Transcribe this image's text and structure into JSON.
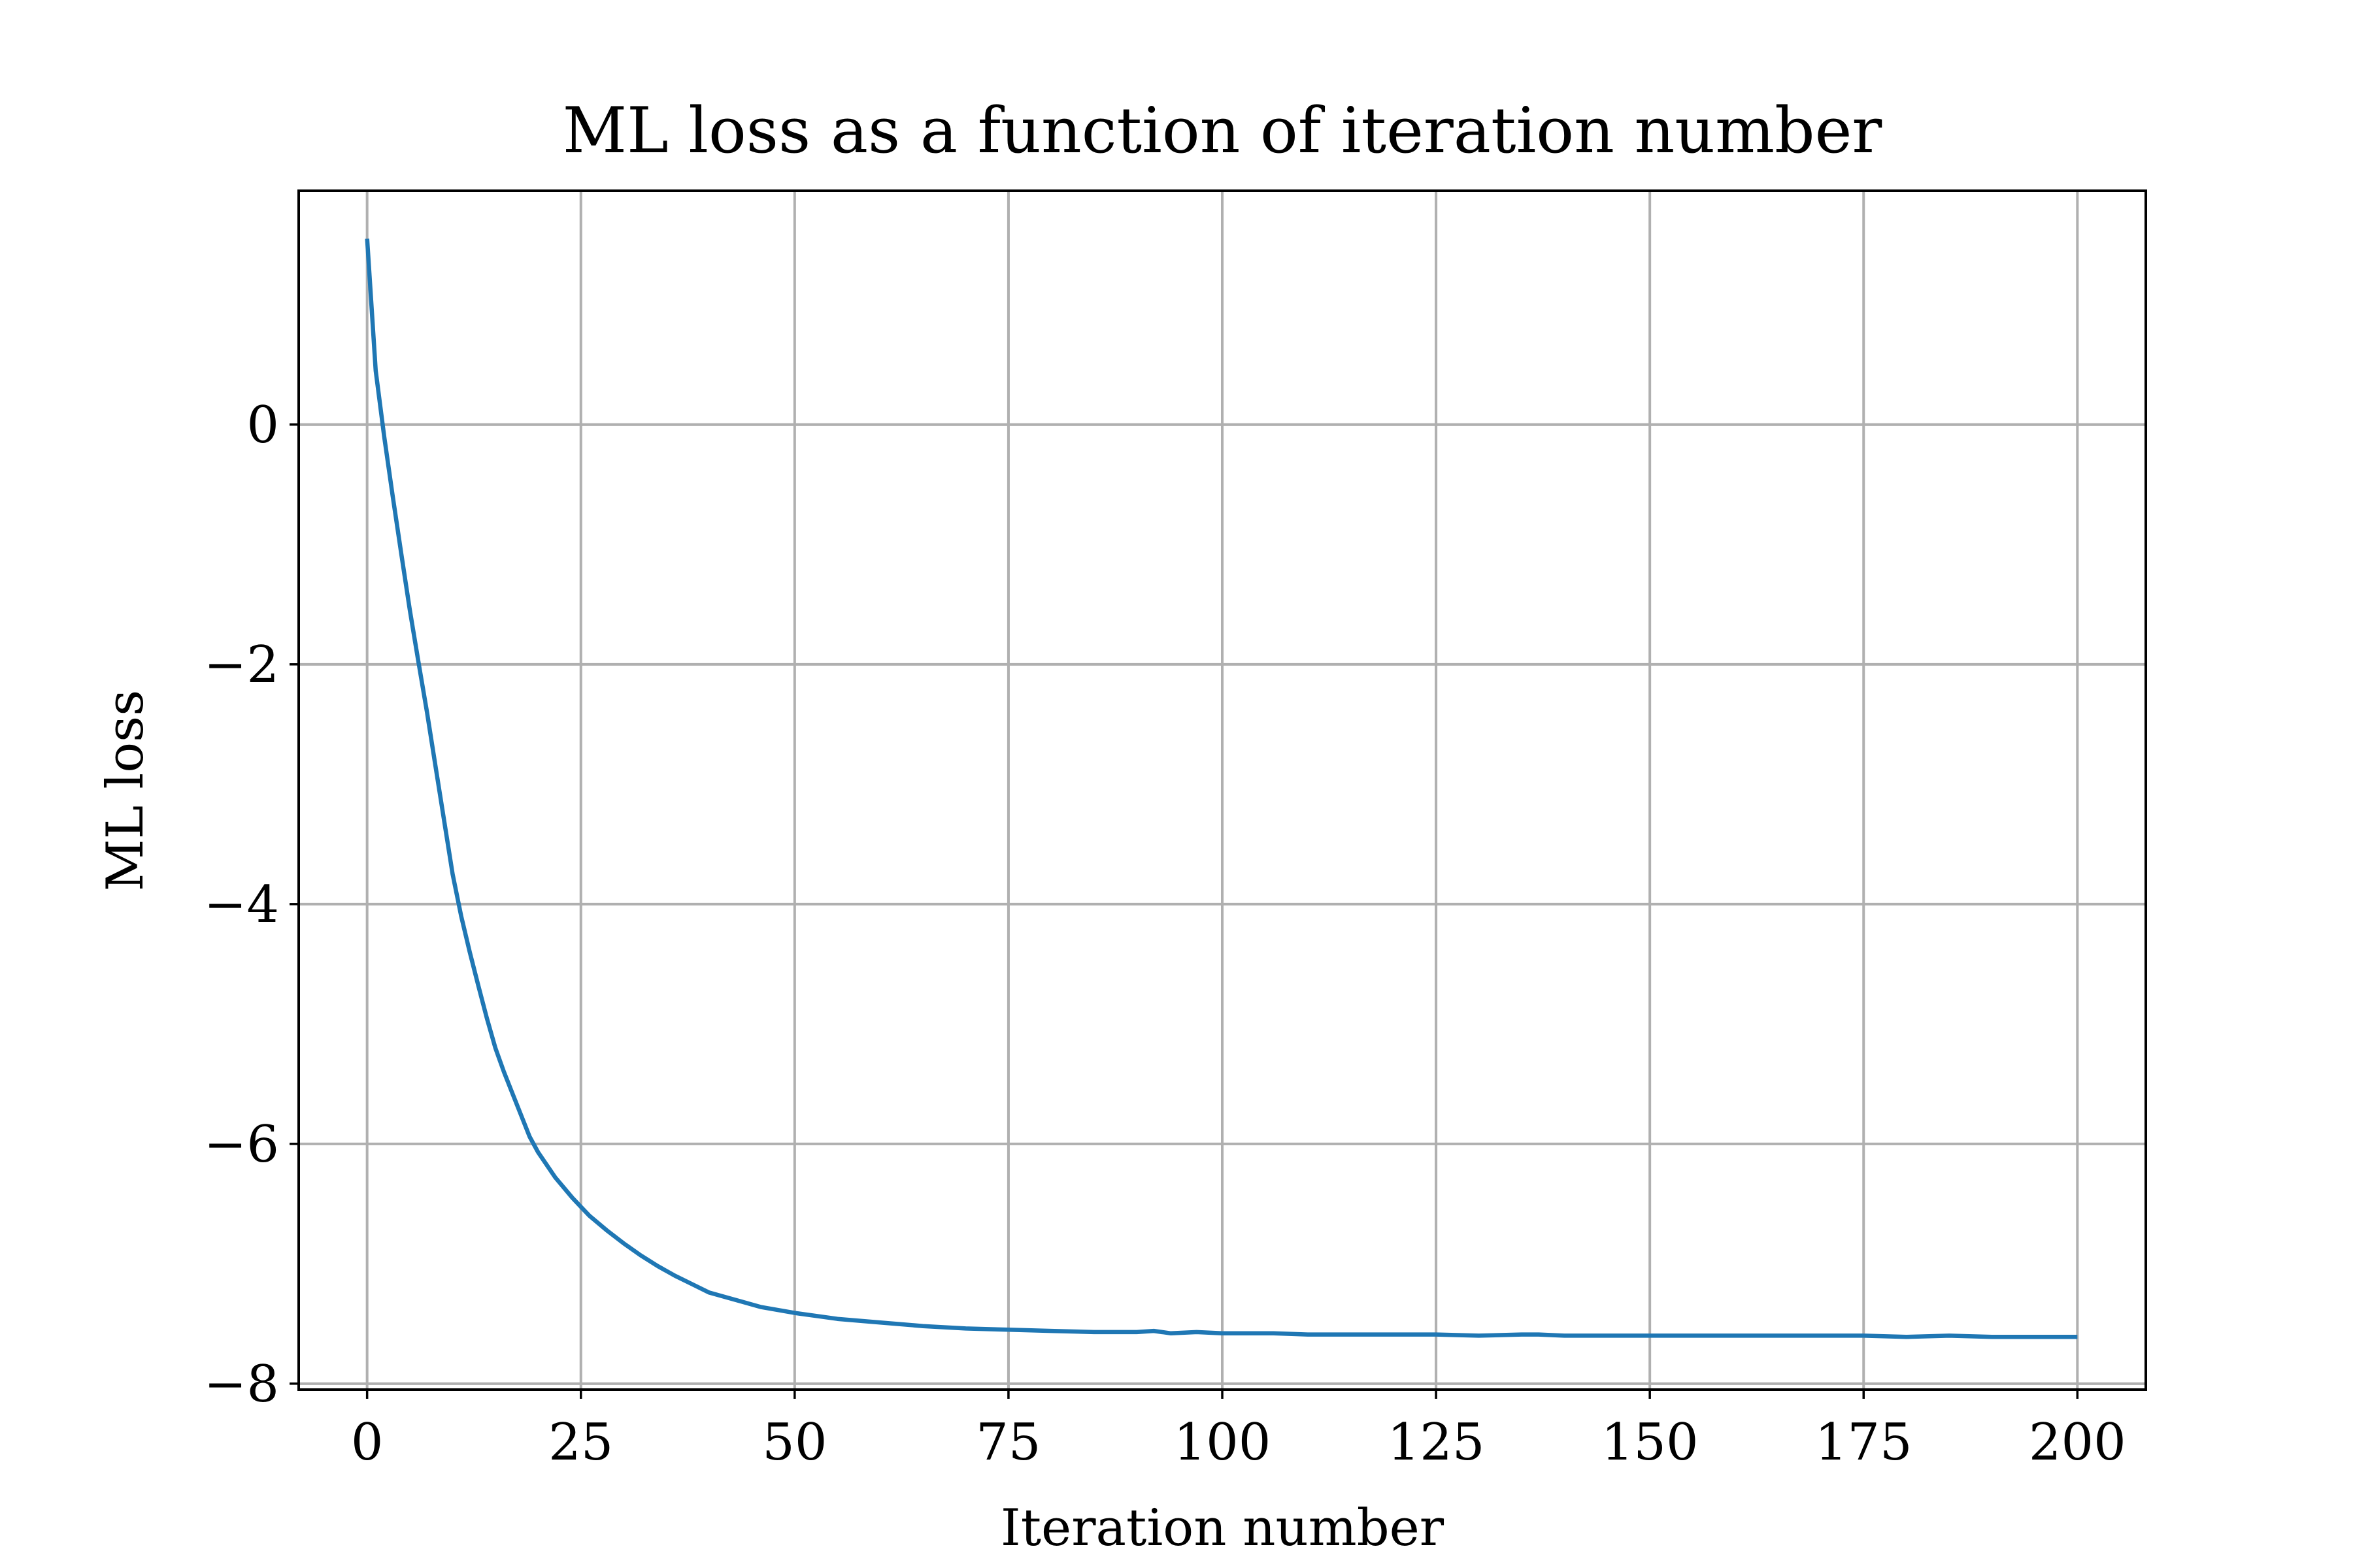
{
  "chart_data": {
    "type": "line",
    "title": "ML loss as a function of iteration number",
    "xlabel": "Iteration number",
    "ylabel": "ML loss",
    "xlim": [
      -8,
      208
    ],
    "ylim": [
      -8.05,
      1.95
    ],
    "xticks": [
      0,
      25,
      50,
      75,
      100,
      125,
      150,
      175,
      200
    ],
    "yticks": [
      0,
      -2,
      -4,
      -6,
      -8
    ],
    "xtick_labels": [
      "0",
      "25",
      "50",
      "75",
      "100",
      "125",
      "150",
      "175",
      "200"
    ],
    "ytick_labels": [
      "0",
      "−2",
      "−4",
      "−6",
      "−8"
    ],
    "grid": true,
    "colors": {
      "series": "#1f77b4",
      "grid": "#b0b0b0"
    },
    "series": [
      {
        "x": [
          0,
          1,
          2,
          3,
          4,
          5,
          6,
          7,
          8,
          9,
          10,
          11,
          12,
          13,
          14,
          15,
          16,
          17,
          18,
          19,
          20,
          22,
          24,
          26,
          28,
          30,
          32,
          34,
          36,
          38,
          40,
          43,
          46,
          50,
          55,
          60,
          65,
          70,
          75,
          80,
          85,
          90,
          92,
          94,
          97,
          100,
          103,
          106,
          110,
          115,
          120,
          125,
          130,
          135,
          137,
          140,
          143,
          146,
          150,
          155,
          160,
          165,
          170,
          175,
          180,
          185,
          190,
          195,
          200
        ],
        "y": [
          1.55,
          0.45,
          -0.1,
          -0.6,
          -1.08,
          -1.55,
          -1.98,
          -2.4,
          -2.85,
          -3.3,
          -3.75,
          -4.1,
          -4.4,
          -4.68,
          -4.95,
          -5.2,
          -5.4,
          -5.58,
          -5.76,
          -5.94,
          -6.07,
          -6.28,
          -6.45,
          -6.6,
          -6.72,
          -6.83,
          -6.93,
          -7.02,
          -7.1,
          -7.17,
          -7.24,
          -7.3,
          -7.36,
          -7.41,
          -7.46,
          -7.49,
          -7.52,
          -7.54,
          -7.55,
          -7.56,
          -7.57,
          -7.57,
          -7.56,
          -7.58,
          -7.57,
          -7.58,
          -7.58,
          -7.58,
          -7.59,
          -7.59,
          -7.59,
          -7.59,
          -7.6,
          -7.59,
          -7.59,
          -7.6,
          -7.6,
          -7.6,
          -7.6,
          -7.6,
          -7.6,
          -7.6,
          -7.6,
          -7.6,
          -7.61,
          -7.6,
          -7.61,
          -7.61,
          -7.61
        ]
      }
    ]
  }
}
